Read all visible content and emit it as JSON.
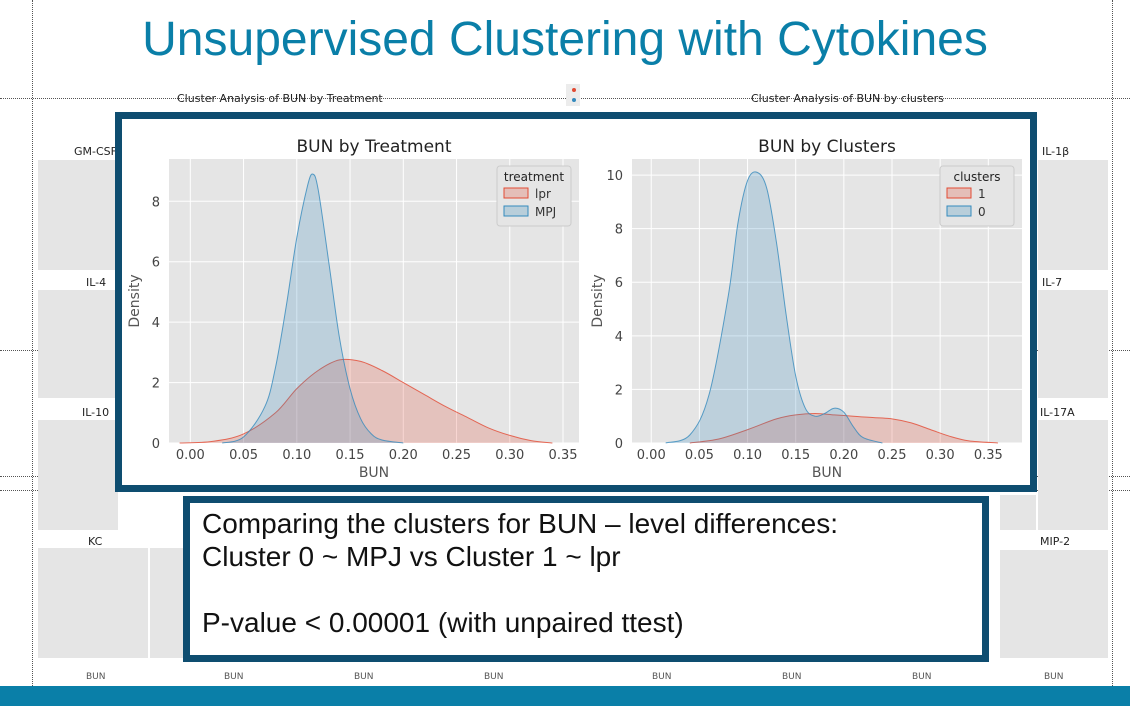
{
  "slide": {
    "title": "Unsupervised Clustering with Cytokines",
    "bg_titles": [
      "Cluster Analysis of BUN by Treatment",
      "Cluster Analysis of BUN by clusters"
    ],
    "bg_panels": [
      "GM-CSF",
      "IL-4",
      "IL-10",
      "KC",
      "IL-1β",
      "IL-7",
      "IL-17A",
      "MIP-2"
    ],
    "bg_xlabel": "BUN",
    "text_lines": [
      "Comparing the clusters for BUN – level differences:",
      "Cluster 0 ~ MPJ vs Cluster 1 ~ lpr",
      "",
      "P-value < 0.00001 (with unpaired ttest)"
    ],
    "accent_color": "#0a7fa8",
    "frame_color": "#0e4d70"
  },
  "chart_data": [
    {
      "type": "area",
      "title": "BUN by Treatment",
      "xlabel": "BUN",
      "ylabel": "Density",
      "xlim": [
        -0.02,
        0.365
      ],
      "ylim": [
        0,
        9.4
      ],
      "xticks": [
        "0.00",
        "0.05",
        "0.10",
        "0.15",
        "0.20",
        "0.25",
        "0.30",
        "0.35"
      ],
      "xtick_values": [
        0,
        0.05,
        0.1,
        0.15,
        0.2,
        0.25,
        0.3,
        0.35
      ],
      "yticks": [
        "0",
        "2",
        "4",
        "6",
        "8"
      ],
      "ytick_values": [
        0,
        2,
        4,
        6,
        8
      ],
      "legend_title": "treatment",
      "legend_position": "top-right",
      "grid": true,
      "series": [
        {
          "name": "lpr",
          "color": "#e24a33",
          "x": [
            -0.01,
            0.02,
            0.05,
            0.08,
            0.1,
            0.12,
            0.14,
            0.16,
            0.18,
            0.2,
            0.22,
            0.24,
            0.26,
            0.28,
            0.3,
            0.32,
            0.34
          ],
          "y": [
            0,
            0.05,
            0.3,
            1.0,
            1.8,
            2.4,
            2.75,
            2.7,
            2.4,
            2.0,
            1.6,
            1.2,
            0.85,
            0.5,
            0.25,
            0.08,
            0
          ]
        },
        {
          "name": "MPJ",
          "color": "#348abd",
          "x": [
            0.03,
            0.05,
            0.07,
            0.08,
            0.09,
            0.1,
            0.11,
            0.115,
            0.12,
            0.13,
            0.14,
            0.15,
            0.16,
            0.17,
            0.18,
            0.2
          ],
          "y": [
            0,
            0.2,
            1.2,
            2.5,
            4.5,
            6.8,
            8.5,
            8.9,
            8.4,
            6.0,
            3.5,
            1.8,
            0.8,
            0.3,
            0.1,
            0
          ]
        }
      ]
    },
    {
      "type": "area",
      "title": "BUN by Clusters",
      "xlabel": "BUN",
      "ylabel": "Density",
      "xlim": [
        -0.02,
        0.385
      ],
      "ylim": [
        0,
        10.6
      ],
      "xticks": [
        "0.00",
        "0.05",
        "0.10",
        "0.15",
        "0.20",
        "0.25",
        "0.30",
        "0.35"
      ],
      "xtick_values": [
        0,
        0.05,
        0.1,
        0.15,
        0.2,
        0.25,
        0.3,
        0.35
      ],
      "yticks": [
        "0",
        "2",
        "4",
        "6",
        "8",
        "10"
      ],
      "ytick_values": [
        0,
        2,
        4,
        6,
        8,
        10
      ],
      "legend_title": "clusters",
      "legend_position": "top-right",
      "grid": true,
      "series": [
        {
          "name": "1",
          "color": "#e24a33",
          "x": [
            0.04,
            0.07,
            0.1,
            0.13,
            0.15,
            0.17,
            0.19,
            0.21,
            0.23,
            0.25,
            0.27,
            0.29,
            0.31,
            0.33,
            0.36
          ],
          "y": [
            0,
            0.15,
            0.5,
            0.9,
            1.05,
            1.1,
            1.05,
            1.0,
            0.95,
            0.9,
            0.75,
            0.5,
            0.25,
            0.08,
            0
          ]
        },
        {
          "name": "0",
          "color": "#348abd",
          "x": [
            0.015,
            0.04,
            0.06,
            0.08,
            0.09,
            0.1,
            0.11,
            0.12,
            0.13,
            0.14,
            0.15,
            0.16,
            0.17,
            0.18,
            0.19,
            0.2,
            0.21,
            0.22,
            0.24
          ],
          "y": [
            0,
            0.3,
            1.8,
            5.5,
            8.2,
            9.8,
            10.1,
            9.5,
            7.5,
            4.8,
            2.5,
            1.3,
            1.0,
            1.1,
            1.3,
            1.15,
            0.6,
            0.2,
            0
          ]
        }
      ]
    }
  ]
}
